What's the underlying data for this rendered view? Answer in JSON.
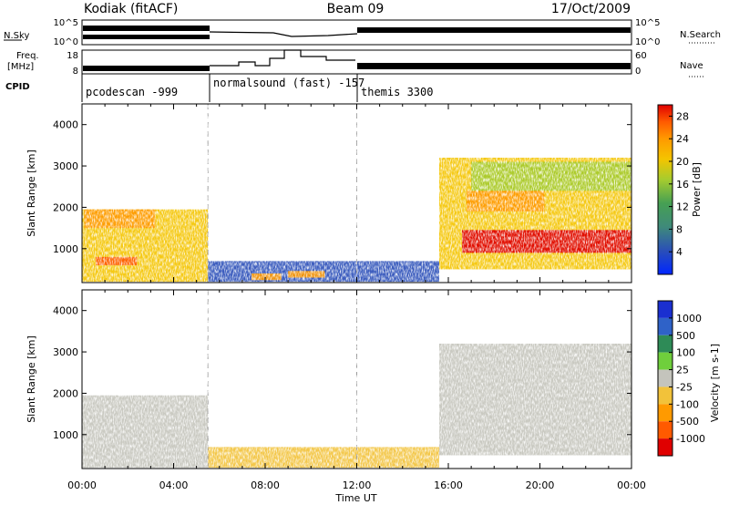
{
  "header": {
    "station": "Kodiak (fitACF)",
    "beam": "Beam 09",
    "date": "17/Oct/2009"
  },
  "top_panels": {
    "nsky_label": "N.Sky",
    "nsky_ticks": [
      "10^5",
      "10^0"
    ],
    "nsearch_label": "N.Search",
    "nsearch_ticks": [
      "10^5",
      "10^0"
    ],
    "freq_label_line1": "Freq.",
    "freq_label_line2": "[MHz]",
    "freq_ticks": [
      "18",
      "8"
    ],
    "nave_label": "Nave",
    "nave_ticks": [
      "60",
      "0"
    ],
    "cpid_label": "CPID",
    "cpid_segments": [
      {
        "label": "pcodescan -999",
        "start_h": 0.0
      },
      {
        "label": "normalsound (fast) -157",
        "start_h": 5.5
      },
      {
        "label": "themis 3300",
        "start_h": 12.0
      }
    ]
  },
  "chart_data": [
    {
      "type": "heatmap",
      "panel": "power",
      "ylabel": "Slant Range [km]",
      "xlabel": "Time UT",
      "x_ticks": [
        "00:00",
        "04:00",
        "08:00",
        "12:00",
        "16:00",
        "20:00",
        "00:00"
      ],
      "xlim_hours": [
        0,
        24
      ],
      "ylim_km": [
        180,
        4500
      ],
      "y_ticks": [
        1000,
        2000,
        3000,
        4000
      ],
      "colorbar_label": "Power [dB]",
      "colorbar_ticks": [
        4,
        8,
        12,
        16,
        20,
        24,
        28
      ],
      "colorbar_range": [
        0,
        30
      ],
      "colors": [
        "#0026ff",
        "#2a4fb8",
        "#3f8a7a",
        "#46a053",
        "#a6cc2e",
        "#f4c400",
        "#ff9a00",
        "#ff5a00",
        "#e00000"
      ],
      "regions": [
        {
          "t": [
            0.0,
            5.5
          ],
          "r": [
            200,
            1950
          ],
          "level": 18
        },
        {
          "t": [
            0.1,
            3.2
          ],
          "r": [
            1500,
            1950
          ],
          "level": 22
        },
        {
          "t": [
            0.6,
            2.4
          ],
          "r": [
            600,
            800
          ],
          "level": 26
        },
        {
          "t": [
            5.5,
            15.6
          ],
          "r": [
            200,
            700
          ],
          "level": 6
        },
        {
          "t": [
            7.4,
            8.7
          ],
          "r": [
            240,
            400
          ],
          "level": 22
        },
        {
          "t": [
            9.0,
            10.6
          ],
          "r": [
            300,
            460
          ],
          "level": 20
        },
        {
          "t": [
            15.6,
            24.0
          ],
          "r": [
            500,
            3200
          ],
          "level": 17
        },
        {
          "t": [
            16.6,
            24.0
          ],
          "r": [
            900,
            1450
          ],
          "level": 28
        },
        {
          "t": [
            16.8,
            20.2
          ],
          "r": [
            1900,
            2400
          ],
          "level": 22
        },
        {
          "t": [
            17.0,
            24.0
          ],
          "r": [
            2400,
            3100
          ],
          "level": 15
        }
      ]
    },
    {
      "type": "heatmap",
      "panel": "velocity",
      "ylabel": "Slant Range [km]",
      "xlabel": "Time UT",
      "x_ticks": [
        "00:00",
        "04:00",
        "08:00",
        "12:00",
        "16:00",
        "20:00",
        "00:00"
      ],
      "xlim_hours": [
        0,
        24
      ],
      "ylim_km": [
        180,
        4500
      ],
      "y_ticks": [
        1000,
        2000,
        3000,
        4000
      ],
      "colorbar_label": "Velocity [m s-1]",
      "colorbar_ticks": [
        "1000",
        "500",
        "100",
        "25",
        "-25",
        "-100",
        "-500",
        "-1000"
      ],
      "colors": [
        "#1a2fd0",
        "#2f62c8",
        "#2e8b57",
        "#6fcf3c",
        "#c4c4bc",
        "#f2c23a",
        "#ff9a00",
        "#ff5a00",
        "#e00000"
      ],
      "regions": [
        {
          "t": [
            0.0,
            5.5
          ],
          "r": [
            200,
            1950
          ],
          "level": "-25..25"
        },
        {
          "t": [
            5.5,
            15.6
          ],
          "r": [
            200,
            700
          ],
          "level": "-100"
        },
        {
          "t": [
            15.6,
            24.0
          ],
          "r": [
            500,
            3200
          ],
          "level": "-25..25"
        }
      ]
    }
  ]
}
